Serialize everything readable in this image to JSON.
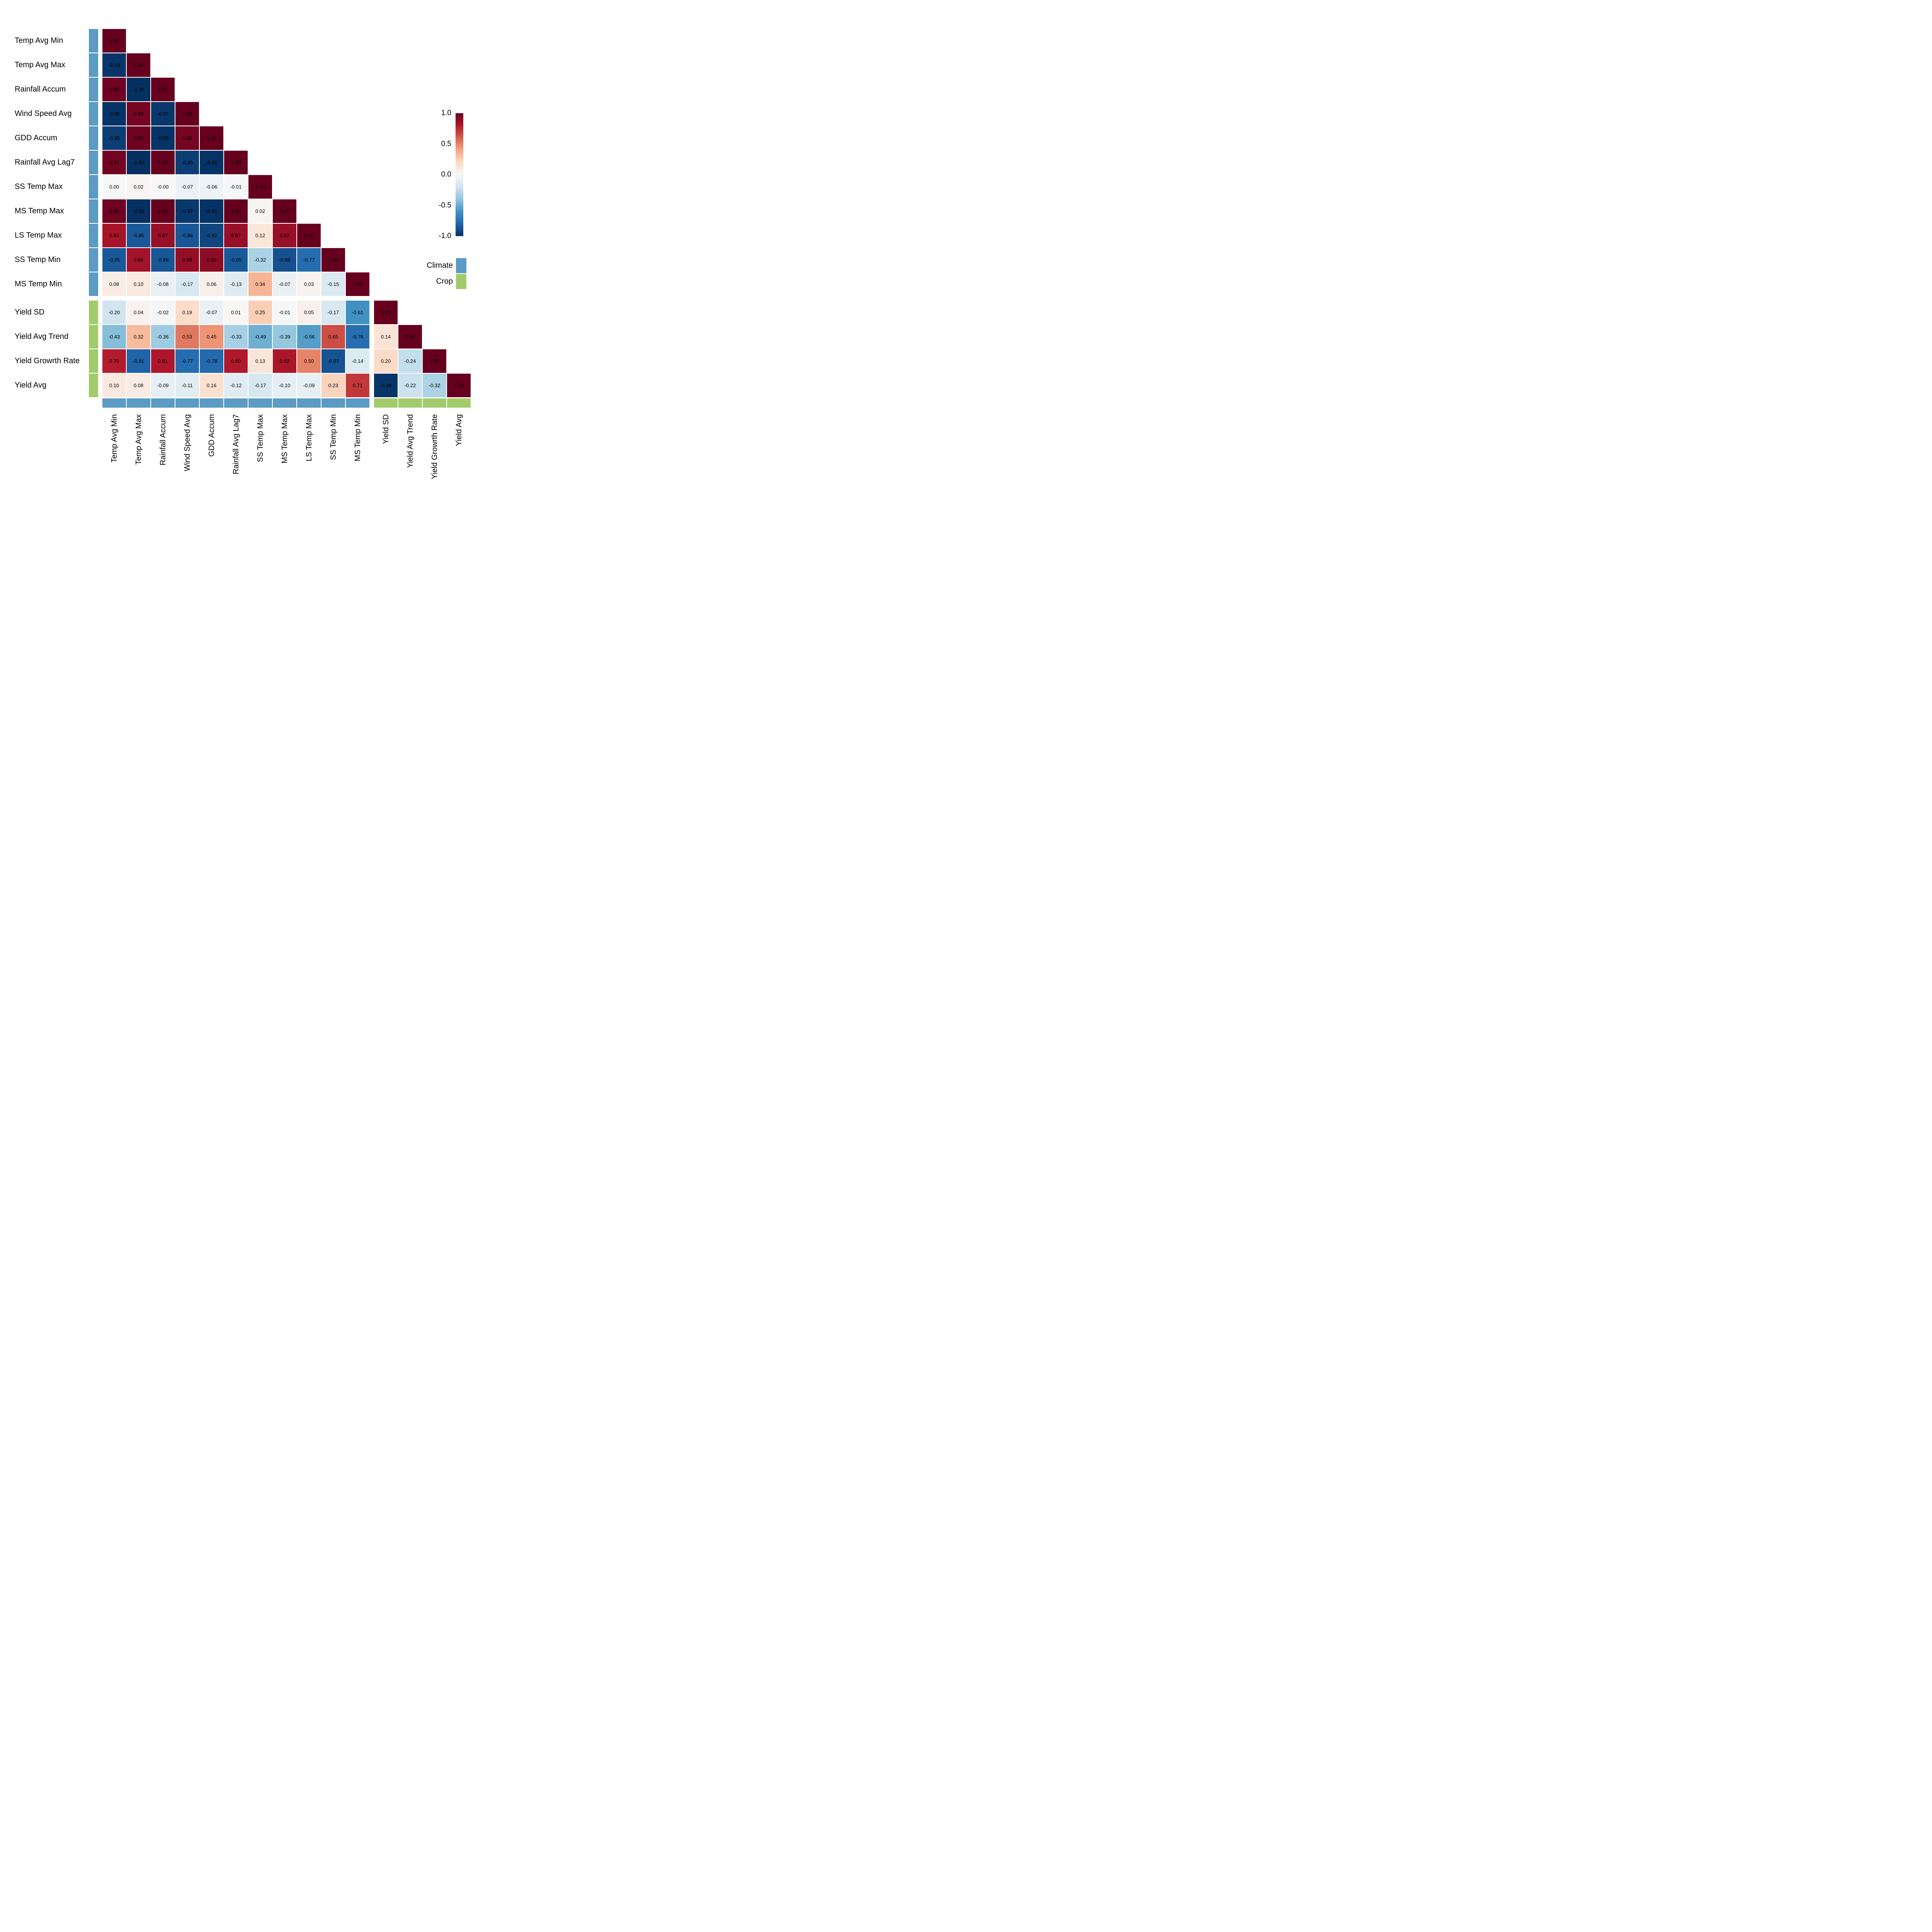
{
  "chart_data": {
    "type": "heatmap",
    "title": "",
    "subtitle": "",
    "description": "Lower-triangular correlation matrix heatmap of climate and crop variables",
    "variables": [
      "Temp Avg Min",
      "Temp Avg Max",
      "Rainfall Accum",
      "Wind Speed Avg",
      "GDD Accum",
      "Rainfall Avg Lag7",
      "SS Temp Max",
      "MS Temp Max",
      "LS Temp Max",
      "SS Temp Min",
      "MS Temp Min",
      "Yield SD",
      "Yield Avg Trend",
      "Yield Growrth Rate",
      "Yield Avg"
    ],
    "groups": [
      "climate",
      "climate",
      "climate",
      "climate",
      "climate",
      "climate",
      "climate",
      "climate",
      "climate",
      "climate",
      "climate",
      "crop",
      "crop",
      "crop",
      "crop"
    ],
    "lower_triangle_values": [
      [
        "1.00"
      ],
      [
        "-0.98",
        "1.00"
      ],
      [
        "0.98",
        "-1.00",
        "1.00"
      ],
      [
        "-0.99",
        "0.96",
        "-0.97",
        "1.00"
      ],
      [
        "-0.95",
        "0.98",
        "-0.99",
        "0.96",
        "1.00"
      ],
      [
        "0.97",
        "-1.00",
        "1.00",
        "-0.95",
        "-0.99",
        "1.00"
      ],
      [
        "0.00",
        "0.02",
        "-0.00",
        "-0.07",
        "-0.06",
        "-0.01",
        "1.00"
      ],
      [
        "0.98",
        "-1.00",
        "1.00",
        "-0.97",
        "-0.99",
        "1.00",
        "0.02",
        "1.00"
      ],
      [
        "0.83",
        "-0.85",
        "0.87",
        "-0.86",
        "-0.92",
        "0.87",
        "0.12",
        "0.87",
        "1.00"
      ],
      [
        "-0.85",
        "0.84",
        "-0.86",
        "0.88",
        "0.90",
        "-0.85",
        "-0.32",
        "-0.88",
        "-0.77",
        "1.00"
      ],
      [
        "0.08",
        "0.10",
        "-0.08",
        "-0.17",
        "0.06",
        "-0.13",
        "0.34",
        "-0.07",
        "0.03",
        "-0.15",
        "1.00"
      ],
      [
        "-0.20",
        "0.04",
        "-0.02",
        "0.19",
        "-0.07",
        "0.01",
        "0.25",
        "-0.01",
        "0.05",
        "-0.17",
        "-0.61",
        "1.00"
      ],
      [
        "-0.43",
        "0.32",
        "-0.36",
        "0.53",
        "0.45",
        "-0.33",
        "-0.49",
        "-0.39",
        "-0.56",
        "0.65",
        "-0.76",
        "0.14",
        "1.00"
      ],
      [
        "0.79",
        "-0.81",
        "0.81",
        "-0.77",
        "-0.78",
        "0.80",
        "0.13",
        "0.82",
        "0.50",
        "-0.87",
        "-0.14",
        "0.20",
        "-0.24",
        "1.00"
      ],
      [
        "0.10",
        "0.08",
        "-0.09",
        "-0.11",
        "0.16",
        "-0.12",
        "-0.17",
        "-0.10",
        "-0.09",
        "0.23",
        "0.71",
        "-0.98",
        "-0.22",
        "-0.32",
        "1.00"
      ]
    ],
    "value_range": [
      -1.0,
      1.0
    ],
    "colorbar": {
      "orientation": "vertical",
      "ticks": [
        "1.0",
        "0.5",
        "0.0",
        "-0.5",
        "-1.0"
      ]
    },
    "legend": {
      "entries": [
        {
          "label": "Climate",
          "color": "#5b9bc4",
          "group": "climate"
        },
        {
          "label": "Crop",
          "color": "#a3cb6b",
          "group": "crop"
        }
      ]
    },
    "colormap": {
      "name": "RdBu",
      "stops": [
        [
          0.0,
          "#053061"
        ],
        [
          0.1,
          "#2166ac"
        ],
        [
          0.2,
          "#4393c3"
        ],
        [
          0.3,
          "#92c5de"
        ],
        [
          0.4,
          "#d1e5f0"
        ],
        [
          0.5,
          "#f7f7f7"
        ],
        [
          0.6,
          "#fddbc7"
        ],
        [
          0.7,
          "#f4a582"
        ],
        [
          0.8,
          "#d6604d"
        ],
        [
          0.9,
          "#b2182b"
        ],
        [
          1.0,
          "#67001f"
        ]
      ]
    },
    "layout_hints": {
      "triangle": "lower",
      "grid": false,
      "legend_position": "right",
      "colorbar_position": "right"
    }
  }
}
